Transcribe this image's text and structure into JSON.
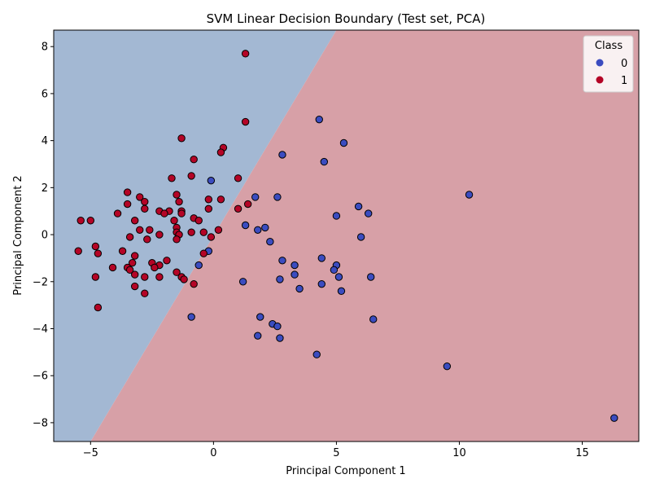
{
  "chart_data": {
    "type": "scatter",
    "title": "SVM Linear Decision Boundary (Test set, PCA)",
    "xlabel": "Principal Component 1",
    "ylabel": "Principal Component 2",
    "xlim": [
      -6.5,
      17.3
    ],
    "ylim": [
      -8.8,
      8.7
    ],
    "xticks": [
      -5,
      0,
      5,
      10,
      15
    ],
    "yticks": [
      -8,
      -6,
      -4,
      -2,
      0,
      2,
      4,
      6,
      8
    ],
    "xtick_labels": [
      "−5",
      "0",
      "5",
      "10",
      "15"
    ],
    "ytick_labels": [
      "−8",
      "−6",
      "−4",
      "−2",
      "0",
      "2",
      "4",
      "6",
      "8"
    ],
    "grid": false,
    "legend": {
      "title": "Class",
      "placement": "top-right",
      "entries": [
        {
          "label": "0",
          "color": "#3b4cc0"
        },
        {
          "label": "1",
          "color": "#b40426"
        }
      ]
    },
    "decision_regions": {
      "boundary_points": [
        [
          -5.0,
          -8.8
        ],
        [
          5.0,
          8.7
        ]
      ],
      "region_upper_left_class": "0",
      "region_upper_left_color": "#a3b8d3",
      "region_lower_right_class": "1",
      "region_lower_right_color": "#d7a0a7"
    },
    "series": [
      {
        "class": "0",
        "color": "#3b4cc0",
        "points": [
          [
            4.3,
            4.9
          ],
          [
            5.3,
            3.9
          ],
          [
            2.8,
            3.4
          ],
          [
            4.5,
            3.1
          ],
          [
            -0.1,
            2.3
          ],
          [
            10.4,
            1.7
          ],
          [
            1.7,
            1.6
          ],
          [
            2.6,
            1.6
          ],
          [
            5.9,
            1.2
          ],
          [
            6.3,
            0.9
          ],
          [
            5.0,
            0.8
          ],
          [
            1.3,
            0.4
          ],
          [
            2.1,
            0.3
          ],
          [
            1.8,
            0.2
          ],
          [
            6.0,
            -0.1
          ],
          [
            2.3,
            -0.3
          ],
          [
            -0.2,
            -0.7
          ],
          [
            4.4,
            -1.0
          ],
          [
            2.8,
            -1.1
          ],
          [
            3.3,
            -1.3
          ],
          [
            5.0,
            -1.3
          ],
          [
            -0.6,
            -1.3
          ],
          [
            4.9,
            -1.5
          ],
          [
            3.3,
            -1.7
          ],
          [
            5.1,
            -1.8
          ],
          [
            6.4,
            -1.8
          ],
          [
            2.7,
            -1.9
          ],
          [
            1.2,
            -2.0
          ],
          [
            4.4,
            -2.1
          ],
          [
            3.5,
            -2.3
          ],
          [
            5.2,
            -2.4
          ],
          [
            -0.9,
            -3.5
          ],
          [
            1.9,
            -3.5
          ],
          [
            6.5,
            -3.6
          ],
          [
            2.4,
            -3.8
          ],
          [
            2.6,
            -3.9
          ],
          [
            1.8,
            -4.3
          ],
          [
            2.7,
            -4.4
          ],
          [
            4.2,
            -5.1
          ],
          [
            9.5,
            -5.6
          ],
          [
            16.3,
            -7.8
          ]
        ]
      },
      {
        "class": "1",
        "color": "#b40426",
        "points": [
          [
            1.3,
            7.7
          ],
          [
            1.3,
            4.8
          ],
          [
            -1.3,
            4.1
          ],
          [
            0.4,
            3.7
          ],
          [
            0.3,
            3.5
          ],
          [
            -0.8,
            3.2
          ],
          [
            -0.9,
            2.5
          ],
          [
            -1.7,
            2.4
          ],
          [
            1.0,
            2.4
          ],
          [
            -3.5,
            1.8
          ],
          [
            -3.0,
            1.6
          ],
          [
            -1.5,
            1.7
          ],
          [
            -0.2,
            1.5
          ],
          [
            0.3,
            1.5
          ],
          [
            -2.8,
            1.4
          ],
          [
            -1.4,
            1.4
          ],
          [
            1.4,
            1.3
          ],
          [
            -3.5,
            1.3
          ],
          [
            1.0,
            1.1
          ],
          [
            -0.2,
            1.1
          ],
          [
            -2.8,
            1.1
          ],
          [
            -1.3,
            1.0
          ],
          [
            -2.2,
            1.0
          ],
          [
            -1.8,
            1.0
          ],
          [
            -2.0,
            0.9
          ],
          [
            -3.9,
            0.9
          ],
          [
            -1.3,
            0.9
          ],
          [
            -0.8,
            0.7
          ],
          [
            -0.6,
            0.6
          ],
          [
            -5.0,
            0.6
          ],
          [
            -5.4,
            0.6
          ],
          [
            -3.2,
            0.6
          ],
          [
            -1.6,
            0.6
          ],
          [
            -1.5,
            0.3
          ],
          [
            -3.0,
            0.2
          ],
          [
            -2.6,
            0.2
          ],
          [
            0.2,
            0.2
          ],
          [
            -1.5,
            0.1
          ],
          [
            -0.9,
            0.1
          ],
          [
            -0.4,
            0.1
          ],
          [
            -2.2,
            0.0
          ],
          [
            -1.4,
            0.0
          ],
          [
            -3.4,
            -0.1
          ],
          [
            -0.1,
            -0.1
          ],
          [
            -2.7,
            -0.2
          ],
          [
            -1.5,
            -0.2
          ],
          [
            -4.8,
            -0.5
          ],
          [
            -5.5,
            -0.7
          ],
          [
            -3.7,
            -0.7
          ],
          [
            -4.7,
            -0.8
          ],
          [
            -0.4,
            -0.8
          ],
          [
            -3.2,
            -0.9
          ],
          [
            -2.5,
            -1.2
          ],
          [
            -1.9,
            -1.1
          ],
          [
            -3.3,
            -1.2
          ],
          [
            -2.2,
            -1.3
          ],
          [
            -2.4,
            -1.4
          ],
          [
            -4.1,
            -1.4
          ],
          [
            -3.5,
            -1.4
          ],
          [
            -3.4,
            -1.5
          ],
          [
            -1.5,
            -1.6
          ],
          [
            -3.2,
            -1.7
          ],
          [
            -2.8,
            -1.8
          ],
          [
            -2.2,
            -1.8
          ],
          [
            -4.8,
            -1.8
          ],
          [
            -1.3,
            -1.8
          ],
          [
            -1.2,
            -1.9
          ],
          [
            -0.8,
            -2.1
          ],
          [
            -3.2,
            -2.2
          ],
          [
            -2.8,
            -2.5
          ],
          [
            -4.7,
            -3.1
          ]
        ]
      }
    ]
  }
}
